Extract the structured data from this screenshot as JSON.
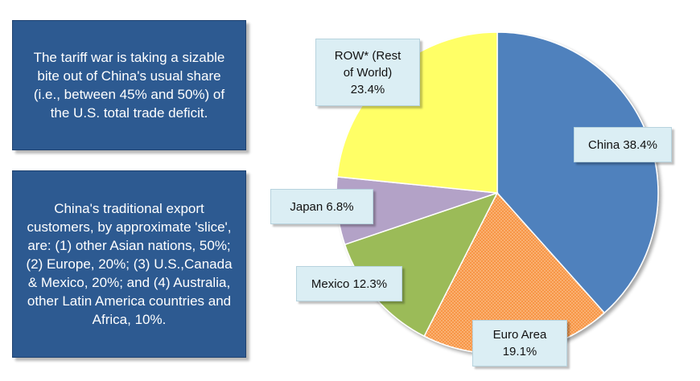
{
  "notes": {
    "note1": "The tariff war is taking a sizable bite out of China's usual share (i.e., between 45% and 50%) of the U.S. total trade deficit.",
    "note2": "China's traditional  export customers, by approximate 'slice', are: (1) other Asian nations, 50%; (2) Europe, 20%; (3) U.S.,Canada & Mexico, 20%; and (4) Australia, other Latin America countries and Africa, 10%."
  },
  "chart_data": {
    "type": "pie",
    "title": "",
    "start": "12 o'clock, clockwise",
    "slices": [
      {
        "name": "China",
        "value": 38.4,
        "color": "#4f81bd",
        "pattern": "none",
        "label_line1": "China 38.4%",
        "label_line2": ""
      },
      {
        "name": "Euro Area",
        "value": 19.1,
        "color": "#f79646",
        "pattern": "dots",
        "label_line1": "Euro Area",
        "label_line2": "19.1%"
      },
      {
        "name": "Mexico",
        "value": 12.3,
        "color": "#9bbb59",
        "pattern": "none",
        "label_line1": "Mexico 12.3%",
        "label_line2": ""
      },
      {
        "name": "Japan",
        "value": 6.8,
        "color": "#b3a2c7",
        "pattern": "none",
        "label_line1": "Japan 6.8%",
        "label_line2": ""
      },
      {
        "name": "ROW* (Rest of World)",
        "value": 23.4,
        "color": "#ffff66",
        "pattern": "none",
        "label_line1": "ROW* (Rest",
        "label_line2": "of World)",
        "label_line3": "23.4%"
      }
    ]
  }
}
